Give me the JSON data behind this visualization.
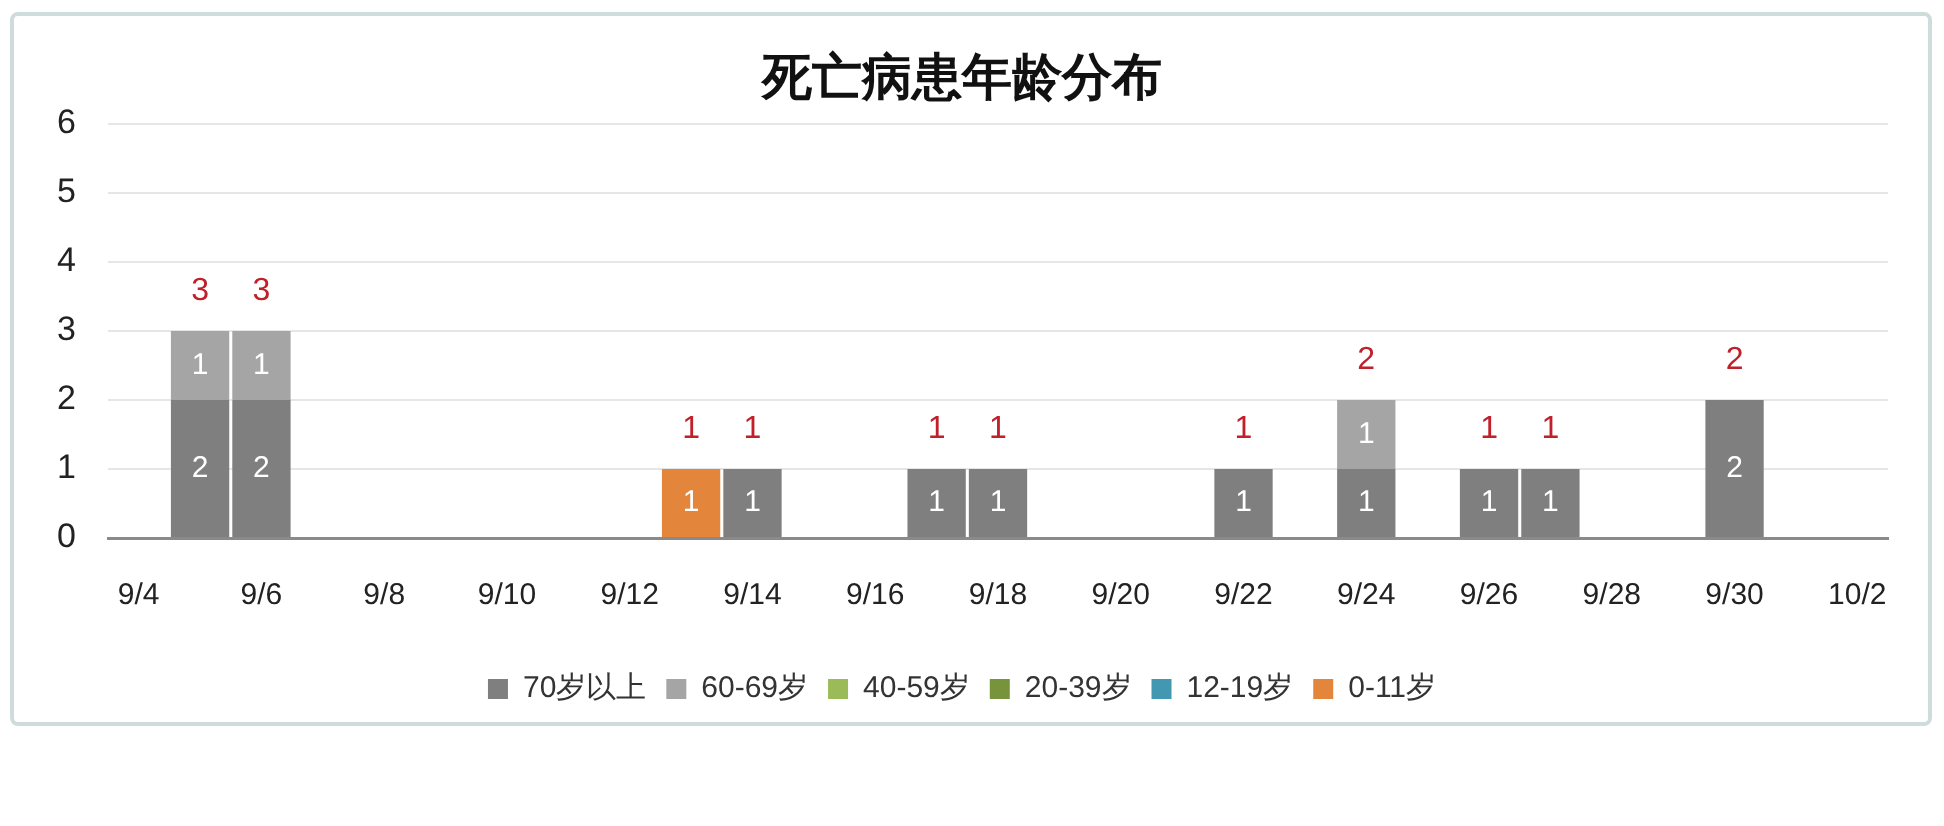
{
  "chart_data": {
    "type": "bar",
    "stacked": true,
    "title": "死亡病患年龄分布",
    "categories": [
      "9/4",
      null,
      "9/6",
      null,
      "9/8",
      null,
      "9/10",
      null,
      "9/12",
      null,
      "9/14",
      null,
      "9/16",
      null,
      "9/18",
      null,
      "9/20",
      null,
      "9/22",
      null,
      "9/24",
      null,
      "9/26",
      null,
      "9/28",
      null,
      "9/30",
      null,
      "10/2"
    ],
    "series": [
      {
        "name": "70岁以上",
        "color": "#7f7f7f",
        "values": [
          null,
          2,
          2,
          null,
          null,
          null,
          null,
          null,
          null,
          null,
          1,
          null,
          null,
          1,
          1,
          null,
          null,
          null,
          1,
          null,
          1,
          null,
          1,
          1,
          null,
          null,
          2,
          null,
          null
        ]
      },
      {
        "name": "60-69岁",
        "color": "#a5a5a5",
        "values": [
          null,
          1,
          1,
          null,
          null,
          null,
          null,
          null,
          null,
          null,
          null,
          null,
          null,
          null,
          null,
          null,
          null,
          null,
          null,
          null,
          1,
          null,
          null,
          null,
          null,
          null,
          null,
          null,
          null
        ]
      },
      {
        "name": "40-59岁",
        "color": "#9bbb59",
        "values": [
          null,
          null,
          null,
          null,
          null,
          null,
          null,
          null,
          null,
          null,
          null,
          null,
          null,
          null,
          null,
          null,
          null,
          null,
          null,
          null,
          null,
          null,
          null,
          null,
          null,
          null,
          null,
          null,
          null
        ]
      },
      {
        "name": "20-39岁",
        "color": "#77933c",
        "values": [
          null,
          null,
          null,
          null,
          null,
          null,
          null,
          null,
          null,
          null,
          null,
          null,
          null,
          null,
          null,
          null,
          null,
          null,
          null,
          null,
          null,
          null,
          null,
          null,
          null,
          null,
          null,
          null,
          null
        ]
      },
      {
        "name": "12-19岁",
        "color": "#4198b0",
        "values": [
          null,
          null,
          null,
          null,
          null,
          null,
          null,
          null,
          null,
          null,
          null,
          null,
          null,
          null,
          null,
          null,
          null,
          null,
          null,
          null,
          null,
          null,
          null,
          null,
          null,
          null,
          null,
          null,
          null
        ]
      },
      {
        "name": "0-11岁",
        "color": "#e3863b",
        "values": [
          null,
          null,
          null,
          null,
          null,
          null,
          null,
          null,
          null,
          1,
          null,
          null,
          null,
          null,
          null,
          null,
          null,
          null,
          null,
          null,
          null,
          null,
          null,
          null,
          null,
          null,
          null,
          null,
          null
        ]
      }
    ],
    "totals": [
      null,
      "3",
      "3",
      null,
      null,
      null,
      null,
      null,
      null,
      "1",
      "1",
      null,
      null,
      "1",
      "1",
      null,
      null,
      null,
      "1",
      null,
      "2",
      null,
      "1",
      "1",
      null,
      null,
      "2",
      null,
      null
    ],
    "ylim": [
      0,
      6
    ],
    "yticks": [
      0,
      1,
      2,
      3,
      4,
      5,
      6
    ],
    "grid": "y",
    "legend": "bottom",
    "data_labels": true
  }
}
